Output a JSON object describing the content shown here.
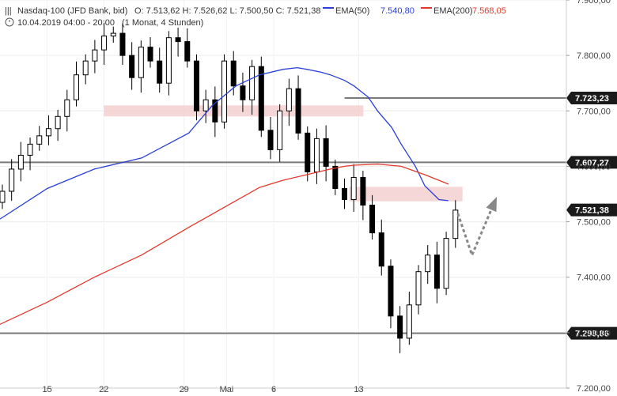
{
  "header": {
    "instrument": "Nasdaq-100 (JFD Bank, bid)",
    "ohlc": "O: 7.513,62   H: 7.526,62   L: 7.500,50   C: 7.521,38",
    "ema50_label": "EMA(50)",
    "ema50_value": "7.540,80",
    "ema200_label": "EMA(200)",
    "ema200_value": "7.568,05",
    "date_range": "10.04.2019 04:00 - 20:00",
    "period": "(1 Monat, 4 Stunden)"
  },
  "colors": {
    "ema50": "#2a3fd6",
    "ema200": "#e0392b",
    "candle": "#000000",
    "zone": "#f2c9c9",
    "level_line": "#7a7a7a",
    "price_tag": "#1a1a1a",
    "projection": "#888888"
  },
  "chart_data": {
    "type": "line",
    "ylim": [
      7200,
      7900
    ],
    "y_ticks": [
      "7.900,00",
      "7.800,00",
      "7.700,00",
      "7.600,00",
      "7.500,00",
      "7.400,00",
      "7.300,00",
      "7.200,00"
    ],
    "x_ticks": [
      "15",
      "22",
      "29",
      "Mai",
      "6",
      "13"
    ],
    "series": [
      {
        "name": "EMA(50)",
        "x": [
          0,
          10,
          20,
          30,
          40,
          45,
          50,
          55,
          60,
          63,
          65,
          68,
          70,
          73,
          75,
          78,
          80,
          83,
          85,
          88,
          90,
          93,
          95
        ],
        "values": [
          7505,
          7560,
          7595,
          7615,
          7660,
          7710,
          7745,
          7765,
          7775,
          7778,
          7775,
          7770,
          7765,
          7755,
          7745,
          7725,
          7700,
          7670,
          7640,
          7600,
          7565,
          7540,
          7538
        ]
      },
      {
        "name": "EMA(200)",
        "x": [
          0,
          10,
          20,
          30,
          40,
          50,
          55,
          60,
          65,
          70,
          73,
          75,
          80,
          85,
          90,
          95
        ],
        "values": [
          7315,
          7355,
          7400,
          7440,
          7490,
          7538,
          7562,
          7575,
          7585,
          7595,
          7600,
          7602,
          7604,
          7600,
          7585,
          7568
        ]
      }
    ],
    "candles_close": [
      7555,
      7595,
      7620,
      7640,
      7655,
      7668,
      7690,
      7720,
      7765,
      7790,
      7810,
      7835,
      7840,
      7800,
      7760,
      7815,
      7790,
      7750,
      7832,
      7825,
      7790,
      7700,
      7720,
      7680,
      7790,
      7745,
      7720,
      7780,
      7665,
      7630,
      7700,
      7740,
      7660,
      7590,
      7650,
      7600,
      7560,
      7540,
      7580,
      7530,
      7480,
      7420,
      7330,
      7290,
      7350,
      7410,
      7440,
      7380,
      7470,
      7521
    ],
    "levels": [
      {
        "label": "7.723,23",
        "value": 7723.23
      },
      {
        "label": "7.607,27",
        "value": 7607.27
      },
      {
        "label": "7.521,38",
        "value": 7521.38
      },
      {
        "label": "7.298,86",
        "value": 7298.86
      }
    ],
    "zones": [
      {
        "x": [
          22,
          77
        ],
        "y": [
          7690,
          7710
        ]
      },
      {
        "x": [
          74,
          98
        ],
        "y": [
          7537,
          7563
        ]
      }
    ],
    "projection": [
      {
        "x": 97,
        "y": 7515
      },
      {
        "x": 100,
        "y": 7440
      },
      {
        "x": 105,
        "y": 7540
      }
    ],
    "xlim": [
      0,
      120
    ]
  }
}
